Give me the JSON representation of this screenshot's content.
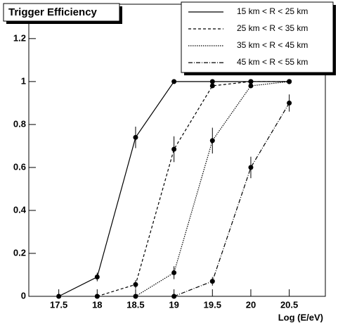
{
  "chart_data": {
    "type": "line",
    "title": "Trigger Efficiency",
    "x_label": "Log (E/eV)",
    "xlim": [
      17.11,
      20.97
    ],
    "xticks": [
      17.5,
      18,
      18.5,
      19,
      19.5,
      20,
      20.5
    ],
    "ylim": [
      0,
      1.36
    ],
    "yticks": [
      0,
      0.2,
      0.4,
      0.6,
      0.8,
      1,
      1.2
    ],
    "legend": "top-right",
    "series": [
      {
        "name": "15 km < R < 25 km",
        "color": "#000000",
        "dash": "none",
        "x": [
          17.5,
          18,
          18.5,
          19,
          19.5,
          20,
          20.5
        ],
        "values": [
          0,
          0.09,
          0.74,
          1,
          1,
          1,
          1
        ],
        "errors": [
          0,
          0.02,
          0.05,
          0,
          0,
          0,
          0
        ]
      },
      {
        "name": "25 km < R < 35 km",
        "color": "#000000",
        "dash": "4,3",
        "x": [
          18,
          18.5,
          19,
          19.5,
          20,
          20.5
        ],
        "values": [
          0,
          0.055,
          0.685,
          0.98,
          1,
          1
        ],
        "errors": [
          0,
          0.02,
          0.06,
          0.01,
          0,
          0
        ]
      },
      {
        "name": "35 km < R < 45 km",
        "color": "#000000",
        "dash": "1.5,1.5",
        "x": [
          18.5,
          19,
          19.5,
          20,
          20.5
        ],
        "values": [
          0,
          0.11,
          0.725,
          0.98,
          1
        ],
        "errors": [
          0,
          0.03,
          0.06,
          0.01,
          0
        ]
      },
      {
        "name": "45 km < R < 55 km",
        "color": "#000000",
        "dash": "6,2,1,2",
        "x": [
          19,
          19.5,
          20,
          20.5
        ],
        "values": [
          0,
          0.07,
          0.6,
          0.9
        ],
        "errors": [
          0,
          0.02,
          0.05,
          0.04
        ]
      }
    ]
  }
}
